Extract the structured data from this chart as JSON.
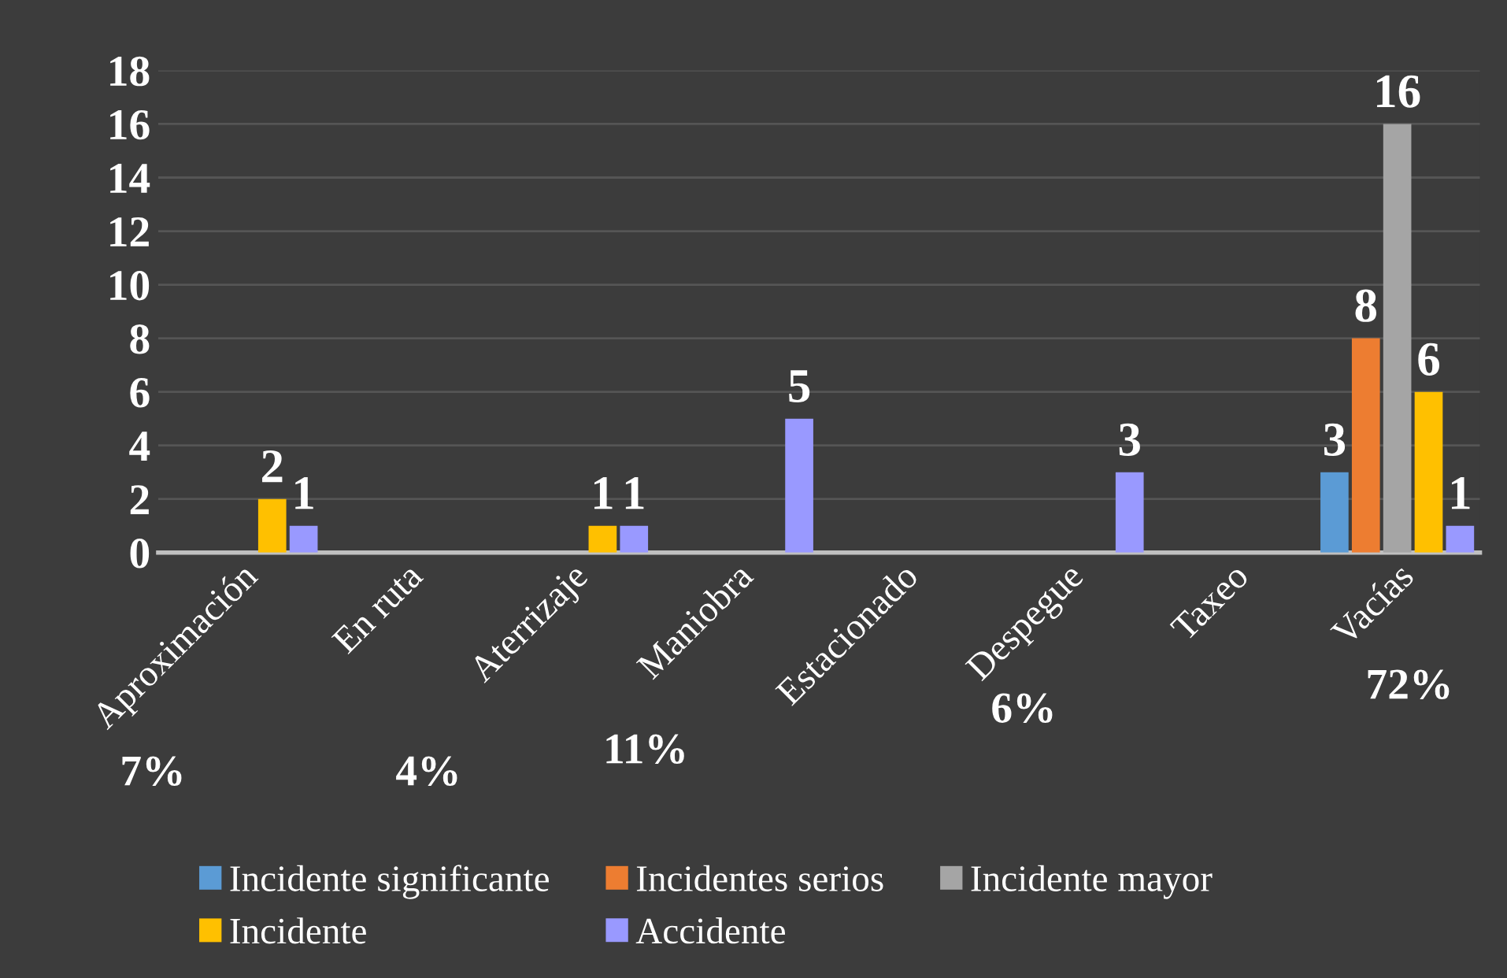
{
  "chart_data": {
    "type": "bar",
    "categories": [
      "Aproximación",
      "En ruta",
      "Aterrizaje",
      "Maniobra",
      "Estacionado",
      "Despegue",
      "Taxeo",
      "Vacías"
    ],
    "series": [
      {
        "name": "Incidente significante",
        "color": "#5b9bd5",
        "values": [
          null,
          null,
          null,
          null,
          null,
          null,
          null,
          3
        ],
        "value_labels": [
          null,
          null,
          null,
          null,
          null,
          null,
          null,
          "3"
        ]
      },
      {
        "name": "Incidentes serios",
        "color": "#ed7d31",
        "values": [
          null,
          null,
          null,
          null,
          null,
          null,
          null,
          8
        ],
        "value_labels": [
          null,
          null,
          null,
          null,
          null,
          null,
          null,
          "8"
        ]
      },
      {
        "name": "Incidente mayor",
        "color": "#a5a5a5",
        "values": [
          null,
          null,
          null,
          null,
          null,
          null,
          null,
          16
        ],
        "value_labels": [
          null,
          null,
          null,
          null,
          null,
          null,
          null,
          "16"
        ]
      },
      {
        "name": "Incidente",
        "color": "#ffc000",
        "values": [
          2,
          null,
          1,
          null,
          null,
          null,
          null,
          6
        ],
        "value_labels": [
          "2",
          null,
          "1",
          null,
          null,
          null,
          null,
          "6"
        ]
      },
      {
        "name": "Accidente",
        "color": "#9999ff",
        "values": [
          1,
          null,
          1,
          5,
          null,
          3,
          null,
          1
        ],
        "value_labels": [
          "1",
          null,
          "1",
          "5",
          null,
          "3",
          null,
          "1"
        ]
      }
    ],
    "ylim": [
      0,
      18
    ],
    "yticks": [
      0,
      2,
      4,
      6,
      8,
      10,
      12,
      14,
      16,
      18
    ],
    "grid": "y",
    "legend": "bottom",
    "annotations": [
      "7%",
      "4%",
      "11%",
      "6%",
      "72%"
    ]
  }
}
